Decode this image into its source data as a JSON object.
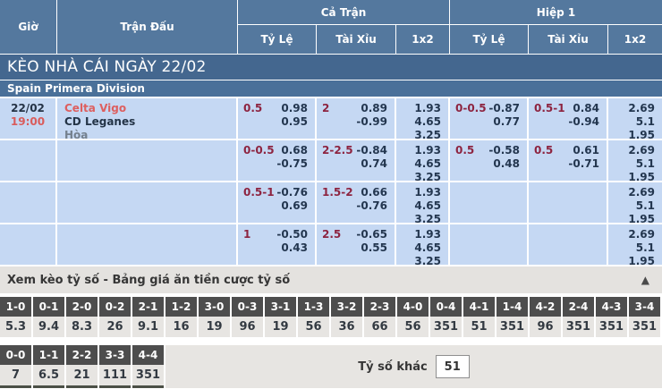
{
  "header": {
    "col_time": "Giờ",
    "col_match": "Trận Đấu",
    "group_full": "Cả Trận",
    "group_half": "Hiệp 1",
    "sub_cols": [
      "Tỷ Lệ",
      "Tài Xỉu",
      "1x2"
    ]
  },
  "section_title": "KÈO NHÀ CÁI NGÀY 22/02",
  "league": "Spain Primera Division",
  "match": {
    "date": "22/02",
    "time": "19:00",
    "home": "Celta Vigo",
    "away": "CD Leganes",
    "draw_label": "Hòa"
  },
  "odds_rows": [
    {
      "full_hdp": {
        "line": "0.5",
        "home": "0.98",
        "away": "0.95"
      },
      "full_ou": {
        "line": "2",
        "over": "0.89",
        "under": "-0.99"
      },
      "full_1x2": [
        "1.93",
        "4.65",
        "3.25"
      ],
      "half_hdp": {
        "line": "0-0.5",
        "home": "-0.87",
        "away": "0.77"
      },
      "half_ou": {
        "line": "0.5-1",
        "over": "0.84",
        "under": "-0.94"
      },
      "half_1x2": [
        "2.69",
        "5.1",
        "1.95"
      ]
    },
    {
      "full_hdp": {
        "line": "0-0.5",
        "home": "0.68",
        "away": "-0.75"
      },
      "full_ou": {
        "line": "2-2.5",
        "over": "-0.84",
        "under": "0.74"
      },
      "full_1x2": [
        "1.93",
        "4.65",
        "3.25"
      ],
      "half_hdp": {
        "line": "0.5",
        "home": "-0.58",
        "away": "0.48"
      },
      "half_ou": {
        "line": "0.5",
        "over": "0.61",
        "under": "-0.71"
      },
      "half_1x2": [
        "2.69",
        "5.1",
        "1.95"
      ]
    },
    {
      "full_hdp": {
        "line": "0.5-1",
        "home": "-0.76",
        "away": "0.69"
      },
      "full_ou": {
        "line": "1.5-2",
        "over": "0.66",
        "under": "-0.76"
      },
      "full_1x2": [
        "1.93",
        "4.65",
        "3.25"
      ],
      "half_hdp": {
        "line": "",
        "home": "",
        "away": ""
      },
      "half_ou": {
        "line": "",
        "over": "",
        "under": ""
      },
      "half_1x2": [
        "2.69",
        "5.1",
        "1.95"
      ]
    },
    {
      "full_hdp": {
        "line": "1",
        "home": "-0.50",
        "away": "0.43"
      },
      "full_ou": {
        "line": "2.5",
        "over": "-0.65",
        "under": "0.55"
      },
      "full_1x2": [
        "1.93",
        "4.65",
        "3.25"
      ],
      "half_hdp": {
        "line": "",
        "home": "",
        "away": ""
      },
      "half_ou": {
        "line": "",
        "over": "",
        "under": ""
      },
      "half_1x2": [
        "2.69",
        "5.1",
        "1.95"
      ]
    }
  ],
  "score_section": {
    "title": "Xem kèo tỷ số - Bảng giá ăn tiền cược tỷ số",
    "collapse_icon": "▲",
    "row1": [
      {
        "score": "1-0",
        "odds": "5.3"
      },
      {
        "score": "0-1",
        "odds": "9.4"
      },
      {
        "score": "2-0",
        "odds": "8.3"
      },
      {
        "score": "0-2",
        "odds": "26"
      },
      {
        "score": "2-1",
        "odds": "9.1"
      },
      {
        "score": "1-2",
        "odds": "16"
      },
      {
        "score": "3-0",
        "odds": "19"
      },
      {
        "score": "0-3",
        "odds": "96"
      },
      {
        "score": "3-1",
        "odds": "19"
      },
      {
        "score": "1-3",
        "odds": "56"
      },
      {
        "score": "3-2",
        "odds": "36"
      },
      {
        "score": "2-3",
        "odds": "66"
      },
      {
        "score": "4-0",
        "odds": "56"
      },
      {
        "score": "0-4",
        "odds": "351"
      },
      {
        "score": "4-1",
        "odds": "51"
      },
      {
        "score": "1-4",
        "odds": "351"
      },
      {
        "score": "4-2",
        "odds": "96"
      },
      {
        "score": "2-4",
        "odds": "351"
      },
      {
        "score": "4-3",
        "odds": "351"
      },
      {
        "score": "3-4",
        "odds": "351"
      }
    ],
    "row2": [
      {
        "score": "0-0",
        "odds": "7"
      },
      {
        "score": "1-1",
        "odds": "6.5"
      },
      {
        "score": "2-2",
        "odds": "21"
      },
      {
        "score": "3-3",
        "odds": "111"
      },
      {
        "score": "4-4",
        "odds": "351"
      }
    ],
    "other_label": "Tỷ số khác",
    "other_value": "51"
  },
  "colors": {
    "header_bg": "#54789e",
    "title_bar_bg": "#44678f",
    "league_bar_bg": "#4a7099",
    "row_bg": "#c5d8f3",
    "handicap_text": "#8d2440",
    "odds_text": "#23364f",
    "home_team_text": "#dd5f5f",
    "score_header_bg": "#4d4d4d",
    "score_value_bg": "#e7e5e2",
    "toggle_bar_bg": "#e4e2df"
  }
}
